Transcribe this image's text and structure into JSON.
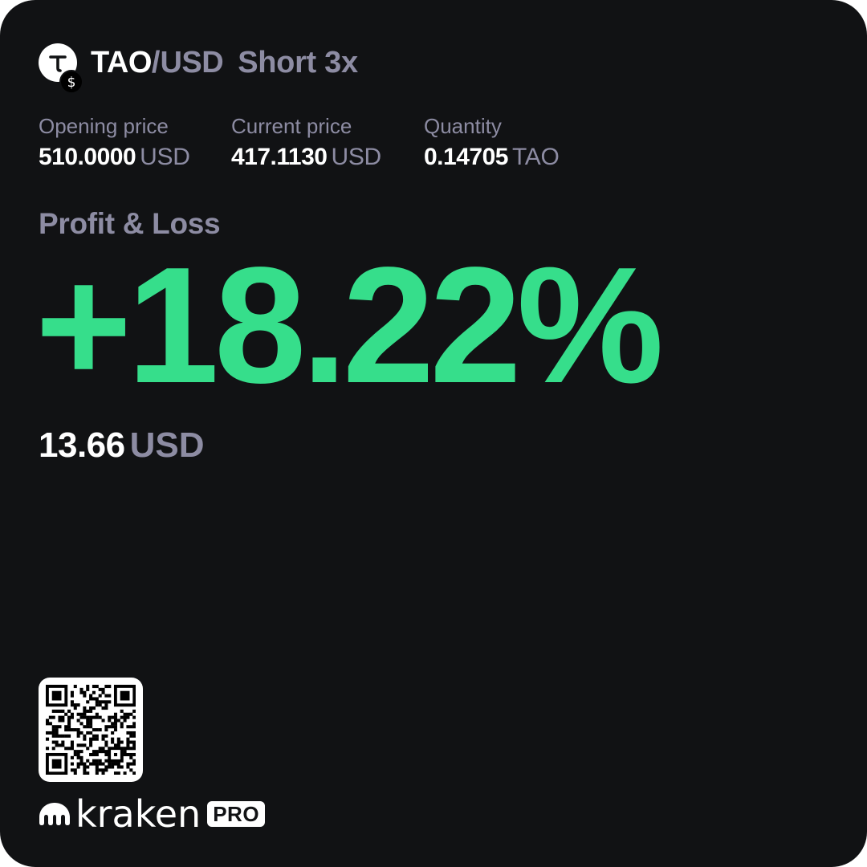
{
  "pair": {
    "base": "TAO",
    "separator": "/",
    "quote": "USD",
    "position_type": "Short 3x",
    "base_icon_glyph": "T",
    "quote_icon_glyph": "$"
  },
  "stats": {
    "opening_price": {
      "label": "Opening price",
      "value": "510.0000",
      "unit": "USD"
    },
    "current_price": {
      "label": "Current price",
      "value": "417.1130",
      "unit": "USD"
    },
    "quantity": {
      "label": "Quantity",
      "value": "0.14705",
      "unit": "TAO"
    }
  },
  "pnl": {
    "label": "Profit & Loss",
    "percent": "+18.22%",
    "amount": "13.66",
    "amount_unit": "USD"
  },
  "brand": {
    "name": "kraken",
    "badge": "PRO"
  },
  "icons": {
    "base": "tao-coin-icon",
    "quote": "usd-coin-icon",
    "brand": "kraken-logo-icon",
    "qr": "qr-code-icon"
  },
  "colors": {
    "background": "#111214",
    "profit": "#36de8b",
    "muted": "#8d8ca3",
    "text": "#ffffff"
  }
}
